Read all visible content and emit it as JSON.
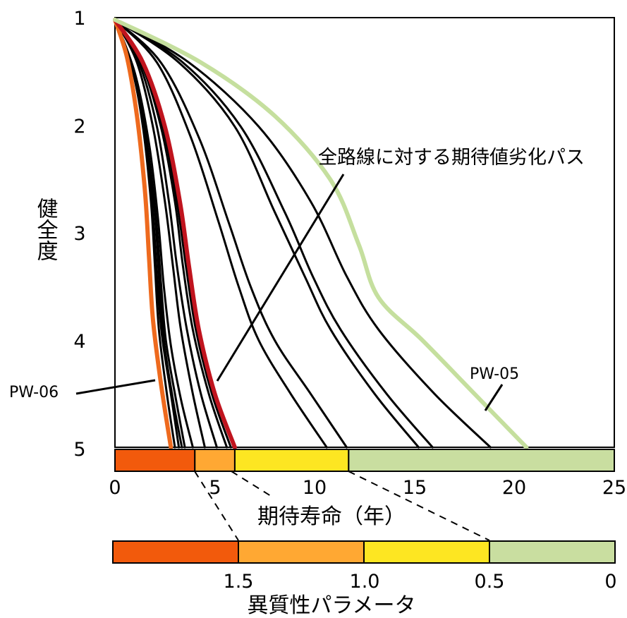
{
  "chart_data": {
    "type": "line",
    "xlabel": "期待寿命（年）",
    "ylabel": "健全度",
    "xlim": [
      0,
      25
    ],
    "ylim": [
      1,
      5
    ],
    "x_ticks": [
      "0",
      "5",
      "10",
      "15",
      "20",
      "25"
    ],
    "y_ticks": [
      "1",
      "2",
      "3",
      "4",
      "5"
    ],
    "annotation": "全路線に対する期待値劣化パス",
    "series": [
      {
        "name": "PW-06",
        "color": "#ee6a1e",
        "points": [
          [
            0,
            1
          ],
          [
            0.6,
            1.35
          ],
          [
            1.1,
            1.9
          ],
          [
            1.5,
            2.6
          ],
          [
            1.7,
            3.2
          ],
          [
            1.9,
            3.8
          ],
          [
            2.3,
            4.4
          ],
          [
            2.8,
            5
          ]
        ]
      },
      {
        "name": "",
        "color": "#000000",
        "points": [
          [
            0,
            1
          ],
          [
            0.8,
            1.4
          ],
          [
            1.4,
            2.0
          ],
          [
            1.8,
            2.7
          ],
          [
            2.0,
            3.3
          ],
          [
            2.2,
            3.9
          ],
          [
            2.6,
            4.5
          ],
          [
            3.0,
            5
          ]
        ]
      },
      {
        "name": "",
        "color": "#000000",
        "points": [
          [
            0,
            1
          ],
          [
            0.85,
            1.45
          ],
          [
            1.5,
            2.1
          ],
          [
            1.9,
            2.8
          ],
          [
            2.1,
            3.4
          ],
          [
            2.35,
            3.95
          ],
          [
            2.8,
            4.5
          ],
          [
            3.2,
            5
          ]
        ]
      },
      {
        "name": "",
        "color": "#000000",
        "points": [
          [
            0,
            1
          ],
          [
            0.9,
            1.45
          ],
          [
            1.55,
            2.1
          ],
          [
            2.0,
            2.8
          ],
          [
            2.2,
            3.4
          ],
          [
            2.45,
            4.0
          ],
          [
            2.9,
            4.55
          ],
          [
            3.35,
            5
          ]
        ]
      },
      {
        "name": "",
        "color": "#000000",
        "points": [
          [
            0,
            1
          ],
          [
            0.95,
            1.5
          ],
          [
            1.6,
            2.15
          ],
          [
            2.05,
            2.85
          ],
          [
            2.3,
            3.45
          ],
          [
            2.55,
            4.0
          ],
          [
            3.05,
            4.55
          ],
          [
            3.5,
            5
          ]
        ]
      },
      {
        "name": "",
        "color": "#000000",
        "points": [
          [
            0,
            1
          ],
          [
            1.0,
            1.5
          ],
          [
            1.7,
            2.15
          ],
          [
            2.15,
            2.85
          ],
          [
            2.45,
            3.5
          ],
          [
            2.8,
            4.05
          ],
          [
            3.3,
            4.55
          ],
          [
            3.9,
            5
          ]
        ]
      },
      {
        "name": "",
        "color": "#000000",
        "points": [
          [
            0,
            1
          ],
          [
            1.1,
            1.4
          ],
          [
            1.9,
            2.0
          ],
          [
            2.5,
            2.7
          ],
          [
            2.9,
            3.3
          ],
          [
            3.3,
            3.9
          ],
          [
            3.9,
            4.5
          ],
          [
            4.5,
            5
          ]
        ]
      },
      {
        "name": "",
        "color": "#000000",
        "points": [
          [
            0,
            1
          ],
          [
            1.2,
            1.4
          ],
          [
            2.1,
            2.0
          ],
          [
            2.7,
            2.7
          ],
          [
            3.1,
            3.3
          ],
          [
            3.6,
            3.9
          ],
          [
            4.3,
            4.5
          ],
          [
            5.1,
            5
          ]
        ]
      },
      {
        "name": "",
        "color": "#000000",
        "points": [
          [
            0,
            1
          ],
          [
            1.3,
            1.4
          ],
          [
            2.3,
            2.0
          ],
          [
            3.0,
            2.7
          ],
          [
            3.4,
            3.3
          ],
          [
            3.9,
            3.9
          ],
          [
            4.7,
            4.5
          ],
          [
            5.6,
            5
          ]
        ]
      },
      {
        "name": "",
        "color": "#000000",
        "points": [
          [
            0,
            1
          ],
          [
            1.35,
            1.4
          ],
          [
            2.4,
            2.0
          ],
          [
            3.1,
            2.7
          ],
          [
            3.55,
            3.3
          ],
          [
            4.05,
            3.9
          ],
          [
            4.85,
            4.5
          ],
          [
            5.8,
            5
          ]
        ]
      },
      {
        "name": "",
        "color": "#c0141e",
        "points": [
          [
            0,
            1
          ],
          [
            1.4,
            1.4
          ],
          [
            2.5,
            2.0
          ],
          [
            3.25,
            2.7
          ],
          [
            3.7,
            3.3
          ],
          [
            4.2,
            3.9
          ],
          [
            5.0,
            4.5
          ],
          [
            6.0,
            5
          ]
        ]
      },
      {
        "name": "",
        "color": "#000000",
        "points": [
          [
            0,
            1
          ],
          [
            2.1,
            1.4
          ],
          [
            3.8,
            2.1
          ],
          [
            5.2,
            2.9
          ],
          [
            6.2,
            3.5
          ],
          [
            7.2,
            4.0
          ],
          [
            8.8,
            4.5
          ],
          [
            10.6,
            5
          ]
        ]
      },
      {
        "name": "",
        "color": "#000000",
        "points": [
          [
            0,
            1
          ],
          [
            2.3,
            1.4
          ],
          [
            4.2,
            2.1
          ],
          [
            5.7,
            2.9
          ],
          [
            6.8,
            3.5
          ],
          [
            8.0,
            4.0
          ],
          [
            9.8,
            4.5
          ],
          [
            11.6,
            5
          ]
        ]
      },
      {
        "name": "",
        "color": "#000000",
        "points": [
          [
            0,
            1
          ],
          [
            3.2,
            1.4
          ],
          [
            6.0,
            2.0
          ],
          [
            8.0,
            2.8
          ],
          [
            9.5,
            3.4
          ],
          [
            10.8,
            3.9
          ],
          [
            13.0,
            4.5
          ],
          [
            15.2,
            5
          ]
        ]
      },
      {
        "name": "",
        "color": "#000000",
        "points": [
          [
            0,
            1
          ],
          [
            3.4,
            1.4
          ],
          [
            6.3,
            2.0
          ],
          [
            8.5,
            2.8
          ],
          [
            9.9,
            3.4
          ],
          [
            11.3,
            3.9
          ],
          [
            13.6,
            4.5
          ],
          [
            15.9,
            5
          ]
        ]
      },
      {
        "name": "",
        "color": "#000000",
        "points": [
          [
            0,
            1
          ],
          [
            3.7,
            1.4
          ],
          [
            7.2,
            2.0
          ],
          [
            9.8,
            2.7
          ],
          [
            11.6,
            3.4
          ],
          [
            13.2,
            3.9
          ],
          [
            16.0,
            4.5
          ],
          [
            18.8,
            5
          ]
        ]
      },
      {
        "name": "PW-05",
        "color": "#c5df9e",
        "points": [
          [
            0,
            1
          ],
          [
            4.3,
            1.4
          ],
          [
            8.0,
            1.9
          ],
          [
            10.8,
            2.5
          ],
          [
            12.2,
            3.1
          ],
          [
            13.2,
            3.6
          ],
          [
            15.4,
            4.0
          ],
          [
            18.0,
            4.5
          ],
          [
            20.6,
            5
          ]
        ]
      }
    ],
    "bar_colors": [
      "#f25a0c",
      "#ffa833",
      "#fde622",
      "#c9dea0"
    ],
    "upper_bar": {
      "boundaries": [
        0,
        4,
        6,
        11.7,
        25
      ]
    },
    "lower_bar": {
      "ticks": [
        "1.5",
        "1.0",
        "0.5",
        "0"
      ]
    },
    "lower_bar_label": "異質性パラメータ"
  }
}
